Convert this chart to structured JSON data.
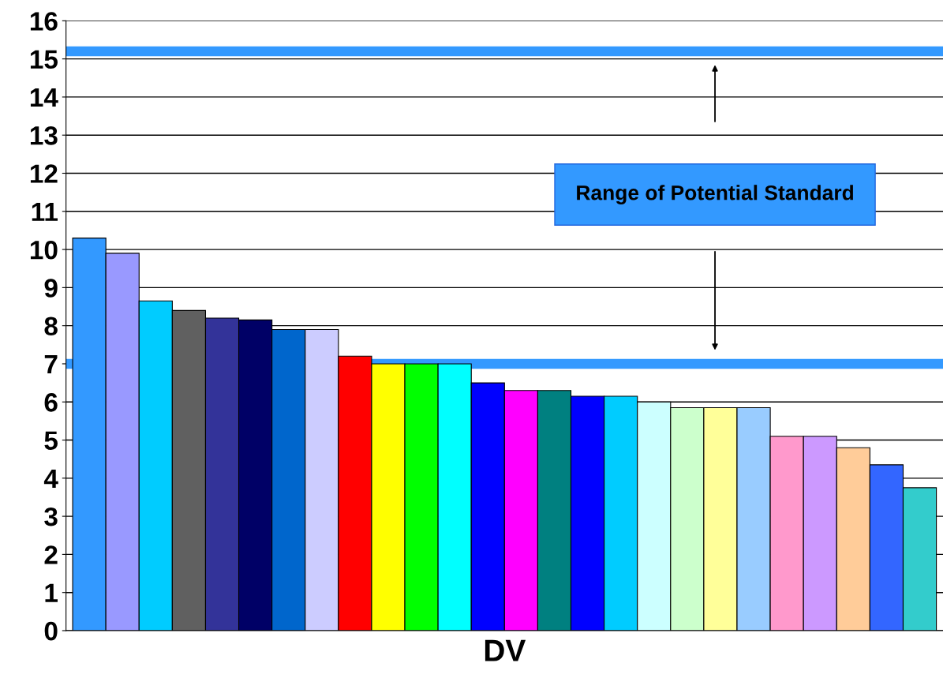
{
  "chart_data": {
    "type": "bar",
    "xlabel": "DV",
    "categories": [
      null,
      null,
      null,
      null,
      null,
      null,
      null,
      null,
      null,
      null,
      null,
      null,
      null,
      null,
      null,
      null,
      null,
      null,
      null,
      null,
      null,
      null,
      null,
      null,
      null,
      null
    ],
    "values": [
      10.3,
      9.9,
      8.65,
      8.4,
      8.2,
      8.15,
      7.9,
      7.9,
      7.2,
      7.0,
      7.0,
      7.0,
      6.5,
      6.3,
      6.3,
      6.15,
      6.15,
      6.0,
      5.85,
      5.85,
      5.85,
      5.1,
      5.1,
      4.8,
      4.35,
      3.75
    ],
    "colors": [
      "#3399ff",
      "#9999ff",
      "#00ccff",
      "#606060",
      "#333399",
      "#000066",
      "#0066cc",
      "#ccccff",
      "#ff0000",
      "#ffff00",
      "#00ff00",
      "#00ffff",
      "#0000ff",
      "#ff00ff",
      "#008080",
      "#0000ff",
      "#00ccff",
      "#ccffff",
      "#ccffcc",
      "#ffff99",
      "#99ccff",
      "#ff99cc",
      "#cc99ff",
      "#ffcc99",
      "#3366ff",
      "#33cccc"
    ],
    "ylim": [
      0,
      16
    ],
    "yticks": [
      0,
      1,
      2,
      3,
      4,
      5,
      6,
      7,
      8,
      9,
      10,
      11,
      12,
      13,
      14,
      15,
      16
    ],
    "grid": "y",
    "ref_lines": [
      {
        "axis": "y",
        "value": 15.2,
        "label": null,
        "color": "#3399ff"
      },
      {
        "axis": "y",
        "value": 7.0,
        "label": null,
        "color": "#3399ff"
      }
    ],
    "annotations": [
      "Range of Potential Standard"
    ]
  }
}
